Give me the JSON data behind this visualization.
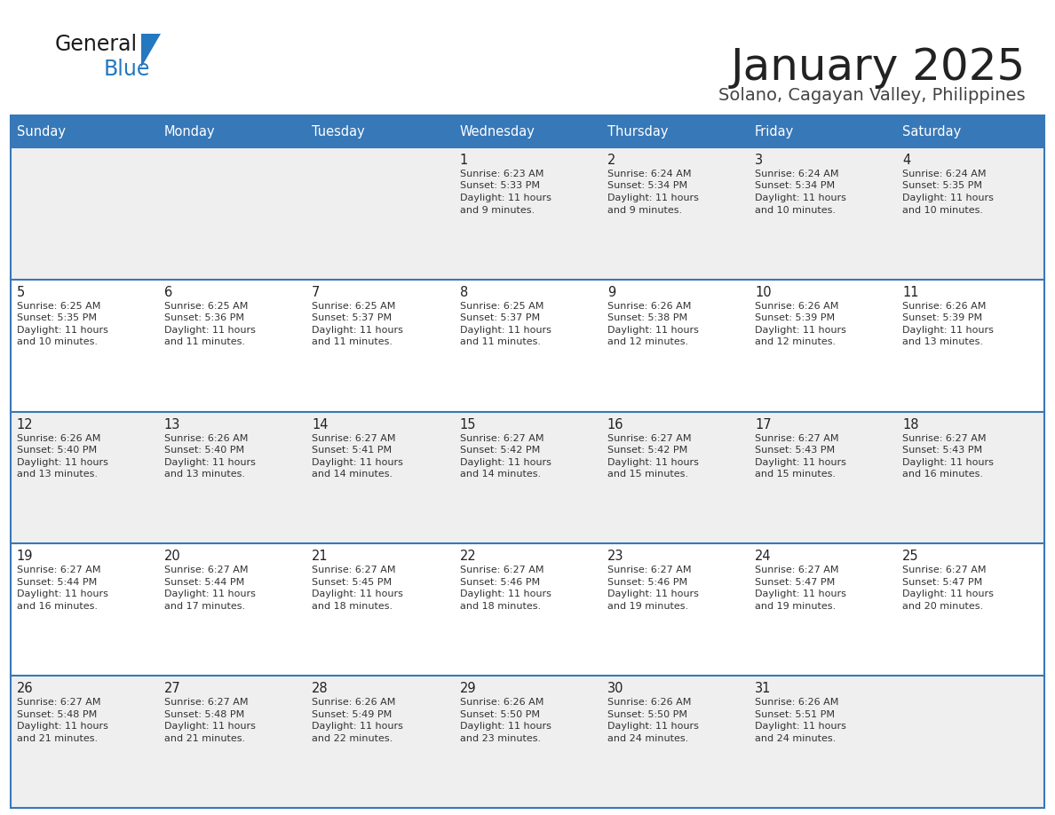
{
  "title": "January 2025",
  "subtitle": "Solano, Cagayan Valley, Philippines",
  "days_of_week": [
    "Sunday",
    "Monday",
    "Tuesday",
    "Wednesday",
    "Thursday",
    "Friday",
    "Saturday"
  ],
  "header_bg": "#3778b8",
  "header_text": "#ffffff",
  "row_bg_odd": "#efefef",
  "row_bg_even": "#ffffff",
  "cell_text": "#333333",
  "day_num_color": "#222222",
  "divider_color": "#3778b8",
  "title_color": "#222222",
  "subtitle_color": "#444444",
  "logo_general_color": "#1a1a1a",
  "logo_blue_color": "#2478bf",
  "weeks": [
    [
      {
        "day": null,
        "sunrise": null,
        "sunset": null,
        "daylight": null
      },
      {
        "day": null,
        "sunrise": null,
        "sunset": null,
        "daylight": null
      },
      {
        "day": null,
        "sunrise": null,
        "sunset": null,
        "daylight": null
      },
      {
        "day": 1,
        "sunrise": "6:23 AM",
        "sunset": "5:33 PM",
        "daylight": "11 hours and 9 minutes."
      },
      {
        "day": 2,
        "sunrise": "6:24 AM",
        "sunset": "5:34 PM",
        "daylight": "11 hours and 9 minutes."
      },
      {
        "day": 3,
        "sunrise": "6:24 AM",
        "sunset": "5:34 PM",
        "daylight": "11 hours and 10 minutes."
      },
      {
        "day": 4,
        "sunrise": "6:24 AM",
        "sunset": "5:35 PM",
        "daylight": "11 hours and 10 minutes."
      }
    ],
    [
      {
        "day": 5,
        "sunrise": "6:25 AM",
        "sunset": "5:35 PM",
        "daylight": "11 hours and 10 minutes."
      },
      {
        "day": 6,
        "sunrise": "6:25 AM",
        "sunset": "5:36 PM",
        "daylight": "11 hours and 11 minutes."
      },
      {
        "day": 7,
        "sunrise": "6:25 AM",
        "sunset": "5:37 PM",
        "daylight": "11 hours and 11 minutes."
      },
      {
        "day": 8,
        "sunrise": "6:25 AM",
        "sunset": "5:37 PM",
        "daylight": "11 hours and 11 minutes."
      },
      {
        "day": 9,
        "sunrise": "6:26 AM",
        "sunset": "5:38 PM",
        "daylight": "11 hours and 12 minutes."
      },
      {
        "day": 10,
        "sunrise": "6:26 AM",
        "sunset": "5:39 PM",
        "daylight": "11 hours and 12 minutes."
      },
      {
        "day": 11,
        "sunrise": "6:26 AM",
        "sunset": "5:39 PM",
        "daylight": "11 hours and 13 minutes."
      }
    ],
    [
      {
        "day": 12,
        "sunrise": "6:26 AM",
        "sunset": "5:40 PM",
        "daylight": "11 hours and 13 minutes."
      },
      {
        "day": 13,
        "sunrise": "6:26 AM",
        "sunset": "5:40 PM",
        "daylight": "11 hours and 13 minutes."
      },
      {
        "day": 14,
        "sunrise": "6:27 AM",
        "sunset": "5:41 PM",
        "daylight": "11 hours and 14 minutes."
      },
      {
        "day": 15,
        "sunrise": "6:27 AM",
        "sunset": "5:42 PM",
        "daylight": "11 hours and 14 minutes."
      },
      {
        "day": 16,
        "sunrise": "6:27 AM",
        "sunset": "5:42 PM",
        "daylight": "11 hours and 15 minutes."
      },
      {
        "day": 17,
        "sunrise": "6:27 AM",
        "sunset": "5:43 PM",
        "daylight": "11 hours and 15 minutes."
      },
      {
        "day": 18,
        "sunrise": "6:27 AM",
        "sunset": "5:43 PM",
        "daylight": "11 hours and 16 minutes."
      }
    ],
    [
      {
        "day": 19,
        "sunrise": "6:27 AM",
        "sunset": "5:44 PM",
        "daylight": "11 hours and 16 minutes."
      },
      {
        "day": 20,
        "sunrise": "6:27 AM",
        "sunset": "5:44 PM",
        "daylight": "11 hours and 17 minutes."
      },
      {
        "day": 21,
        "sunrise": "6:27 AM",
        "sunset": "5:45 PM",
        "daylight": "11 hours and 18 minutes."
      },
      {
        "day": 22,
        "sunrise": "6:27 AM",
        "sunset": "5:46 PM",
        "daylight": "11 hours and 18 minutes."
      },
      {
        "day": 23,
        "sunrise": "6:27 AM",
        "sunset": "5:46 PM",
        "daylight": "11 hours and 19 minutes."
      },
      {
        "day": 24,
        "sunrise": "6:27 AM",
        "sunset": "5:47 PM",
        "daylight": "11 hours and 19 minutes."
      },
      {
        "day": 25,
        "sunrise": "6:27 AM",
        "sunset": "5:47 PM",
        "daylight": "11 hours and 20 minutes."
      }
    ],
    [
      {
        "day": 26,
        "sunrise": "6:27 AM",
        "sunset": "5:48 PM",
        "daylight": "11 hours and 21 minutes."
      },
      {
        "day": 27,
        "sunrise": "6:27 AM",
        "sunset": "5:48 PM",
        "daylight": "11 hours and 21 minutes."
      },
      {
        "day": 28,
        "sunrise": "6:26 AM",
        "sunset": "5:49 PM",
        "daylight": "11 hours and 22 minutes."
      },
      {
        "day": 29,
        "sunrise": "6:26 AM",
        "sunset": "5:50 PM",
        "daylight": "11 hours and 23 minutes."
      },
      {
        "day": 30,
        "sunrise": "6:26 AM",
        "sunset": "5:50 PM",
        "daylight": "11 hours and 24 minutes."
      },
      {
        "day": 31,
        "sunrise": "6:26 AM",
        "sunset": "5:51 PM",
        "daylight": "11 hours and 24 minutes."
      },
      {
        "day": null,
        "sunrise": null,
        "sunset": null,
        "daylight": null
      }
    ]
  ]
}
